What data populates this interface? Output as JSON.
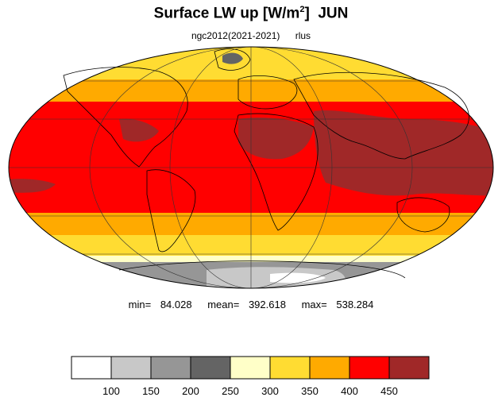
{
  "title": {
    "main": "Surface LW up [W/m",
    "sup": "2",
    "close": "]",
    "month": "JUN"
  },
  "subtitle": {
    "dataset": "ngc2012(2021-2021)",
    "variable": "rlus"
  },
  "stats": {
    "min_label": "min=",
    "min_value": "84.028",
    "mean_label": "mean=",
    "mean_value": "392.618",
    "max_label": "max=",
    "max_value": "538.284"
  },
  "legend": {
    "levels": [
      100,
      150,
      200,
      250,
      300,
      350,
      400,
      450
    ],
    "tick_labels": [
      "100",
      "150",
      "200",
      "250",
      "300",
      "350",
      "400",
      "450"
    ],
    "colors": [
      "#ffffff",
      "#c8c8c8",
      "#969696",
      "#646464",
      "#ffffc8",
      "#ffdc32",
      "#ffaa00",
      "#ff0000",
      "#a02828"
    ]
  },
  "colors": {
    "coastline": "#000000",
    "grid": "#333333",
    "land_tropic": "#ff0000",
    "ocean_tropic": "#ff0000",
    "warmest": "#a02828"
  }
}
